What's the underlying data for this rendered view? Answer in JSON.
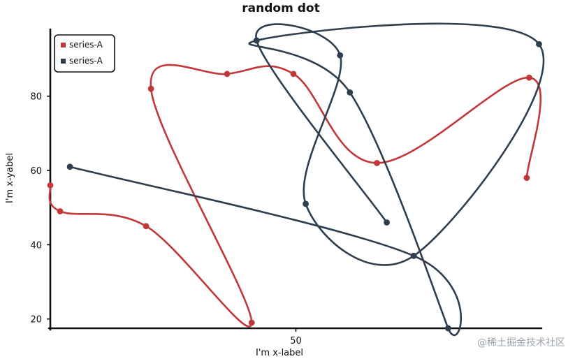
{
  "chart_data": {
    "type": "line",
    "title": "random dot",
    "xlabel": "I'm x-label",
    "ylabel": "I'm x-yabel",
    "xlim": [
      0,
      100
    ],
    "ylim": [
      17.5,
      98
    ],
    "xticks": [
      50
    ],
    "yticks": [
      20,
      40,
      60,
      80
    ],
    "grid": false,
    "legend_position": "top-left",
    "series": [
      {
        "name": "series-A",
        "color": "#c0383a",
        "marker": "circle",
        "points": [
          {
            "x": 0,
            "y": 56
          },
          {
            "x": 2,
            "y": 49
          },
          {
            "x": 19.5,
            "y": 45
          },
          {
            "x": 41,
            "y": 19
          },
          {
            "x": 20.5,
            "y": 82
          },
          {
            "x": 36,
            "y": 86
          },
          {
            "x": 49.5,
            "y": 86
          },
          {
            "x": 66.5,
            "y": 62
          },
          {
            "x": 97.5,
            "y": 85
          },
          {
            "x": 97,
            "y": 58
          }
        ]
      },
      {
        "name": "series-A",
        "color": "#2e3e4e",
        "marker": "circle",
        "points": [
          {
            "x": 4,
            "y": 61
          },
          {
            "x": 74,
            "y": 37
          },
          {
            "x": 81,
            "y": 17.5
          },
          {
            "x": 61,
            "y": 81
          },
          {
            "x": 42,
            "y": 95
          },
          {
            "x": 99.5,
            "y": 94
          },
          {
            "x": 74,
            "y": 37
          },
          {
            "x": 52,
            "y": 51
          },
          {
            "x": 59,
            "y": 91
          },
          {
            "x": 42,
            "y": 95
          },
          {
            "x": 68.5,
            "y": 46
          }
        ]
      }
    ]
  },
  "watermark": "@稀土掘金技术社区"
}
